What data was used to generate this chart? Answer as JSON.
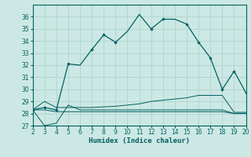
{
  "xlabel": "Humidex (Indice chaleur)",
  "xlim": [
    2,
    20
  ],
  "ylim": [
    27,
    37
  ],
  "yticks": [
    27,
    28,
    29,
    30,
    31,
    32,
    33,
    34,
    35,
    36
  ],
  "xticks": [
    2,
    3,
    4,
    5,
    6,
    7,
    8,
    9,
    10,
    11,
    12,
    13,
    14,
    15,
    16,
    17,
    18,
    19,
    20
  ],
  "bg_color": "#cce8e4",
  "line_color": "#006060",
  "grid_color": "#b0d8d0",
  "main_x": [
    2,
    3,
    4,
    5,
    6,
    7,
    8,
    9,
    10,
    11,
    12,
    13,
    14,
    15,
    16,
    17,
    18,
    19,
    20
  ],
  "main_y": [
    28.3,
    28.5,
    28.3,
    32.1,
    32.0,
    33.3,
    34.5,
    33.9,
    34.8,
    36.2,
    35.0,
    35.8,
    35.8,
    35.4,
    33.9,
    32.6,
    30.0,
    31.5,
    29.7
  ],
  "main_markers_idx": [
    0,
    1,
    2,
    3,
    5,
    6,
    7,
    10,
    11,
    13,
    14,
    15,
    16,
    17,
    18
  ],
  "flat1_x": [
    2,
    3,
    4,
    5,
    6,
    7,
    8,
    9,
    10,
    11,
    12,
    13,
    14,
    15,
    16,
    17,
    18,
    19,
    20
  ],
  "flat1_y": [
    28.3,
    29.0,
    28.5,
    28.5,
    28.5,
    28.5,
    28.55,
    28.6,
    28.7,
    28.8,
    29.0,
    29.1,
    29.2,
    29.3,
    29.5,
    29.5,
    29.5,
    28.1,
    28.1
  ],
  "flat2_x": [
    2,
    3,
    4,
    5,
    6,
    7,
    8,
    9,
    10,
    11,
    12,
    13,
    14,
    15,
    16,
    17,
    18,
    19,
    20
  ],
  "flat2_y": [
    28.3,
    28.3,
    28.15,
    28.15,
    28.15,
    28.15,
    28.15,
    28.15,
    28.15,
    28.15,
    28.15,
    28.15,
    28.15,
    28.15,
    28.15,
    28.15,
    28.15,
    28.0,
    28.0
  ],
  "flat3_x": [
    2,
    3,
    4,
    5,
    6,
    7,
    8,
    9,
    10,
    11,
    12,
    13,
    14,
    15,
    16,
    17,
    18,
    19,
    20
  ],
  "flat3_y": [
    28.3,
    27.0,
    27.2,
    28.7,
    28.3,
    28.3,
    28.3,
    28.3,
    28.3,
    28.3,
    28.3,
    28.3,
    28.3,
    28.3,
    28.3,
    28.3,
    28.3,
    28.0,
    28.0
  ]
}
